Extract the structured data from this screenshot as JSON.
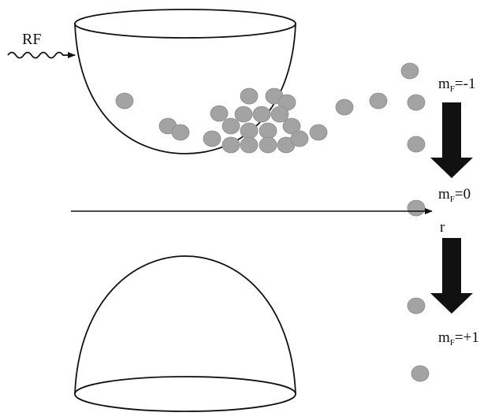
{
  "labels": {
    "rf": "RF",
    "r": "r",
    "states": [
      {
        "symbol": "m",
        "subscript": "F",
        "value": "=-1"
      },
      {
        "symbol": "m",
        "subscript": "F",
        "value": "=0"
      },
      {
        "symbol": "m",
        "subscript": "F",
        "value": "=+1"
      }
    ]
  }
}
